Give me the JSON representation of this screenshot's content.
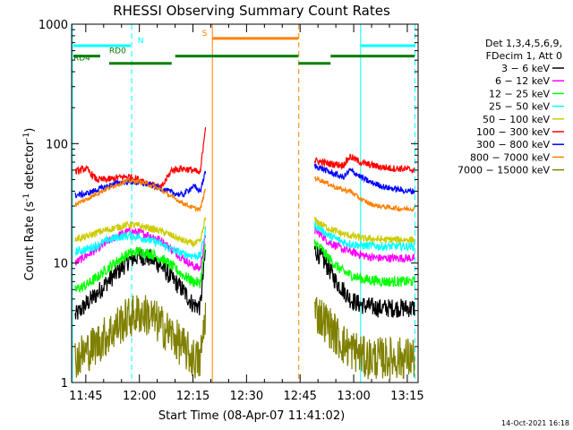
{
  "chart_data": {
    "type": "line",
    "title": "RHESSI Observing Summary Count Rates",
    "xlabel": "Start Time (08-Apr-07 11:41:02)",
    "ylabel": "Count Rate (s^-1 detector^-1)",
    "ylabel_main": "Count Rate (s",
    "ylabel_sup1": "-1",
    "ylabel_mid": " detector",
    "ylabel_sup2": "-1",
    "ylabel_end": ")",
    "x_unit": "minutes after 11:41:02",
    "xlim": [
      0,
      97
    ],
    "ylim": [
      1,
      1000
    ],
    "yscale": "log",
    "x_ticks": [
      {
        "value": 3.97,
        "label": "11:45"
      },
      {
        "value": 18.97,
        "label": "12:00"
      },
      {
        "value": 33.97,
        "label": "12:15"
      },
      {
        "value": 48.97,
        "label": "12:30"
      },
      {
        "value": 63.97,
        "label": "12:45"
      },
      {
        "value": 78.97,
        "label": "13:00"
      },
      {
        "value": 93.97,
        "label": "13:15"
      }
    ],
    "y_ticks": [
      {
        "value": 1,
        "label": "1"
      },
      {
        "value": 10,
        "label": "10"
      },
      {
        "value": 100,
        "label": "100"
      },
      {
        "value": 1000,
        "label": "1000"
      }
    ],
    "legend_header": [
      "Det 1,3,4,5,6,9,",
      "FDecim 1, Att 0"
    ],
    "data_gap": [
      38.2,
      67.0
    ],
    "series": [
      {
        "name": "3 - 6 keV",
        "label": "3 − 6 keV",
        "color": "#000000",
        "x": [
          1,
          4,
          7,
          10,
          13,
          16,
          19,
          22,
          25,
          28,
          31,
          34,
          36,
          37.5,
          68,
          70,
          72,
          74,
          76,
          78,
          80,
          82,
          84,
          86,
          88,
          90,
          92,
          94,
          96
        ],
        "values": [
          3.6,
          4.5,
          5.5,
          7,
          8.5,
          10.5,
          11.5,
          11,
          9.5,
          7.5,
          6,
          4.5,
          4.3,
          13,
          13,
          11,
          9,
          7,
          6,
          5,
          4.6,
          4.4,
          4.3,
          4.2,
          4.2,
          4.2,
          4.2,
          4.2,
          4.2
        ],
        "noise": 0.08
      },
      {
        "name": "6 - 12 keV",
        "label": "6 − 12 keV",
        "color": "#ff00ff",
        "x": [
          1,
          4,
          7,
          10,
          13,
          16,
          19,
          22,
          25,
          28,
          31,
          34,
          36,
          37.5,
          68,
          70,
          72,
          74,
          76,
          78,
          80,
          82,
          84,
          86,
          88,
          90,
          92,
          94,
          96
        ],
        "values": [
          10,
          11.5,
          13,
          15,
          17,
          18.5,
          18,
          17,
          15.5,
          13,
          11,
          9.5,
          9,
          17,
          19,
          17,
          15,
          14,
          13,
          12.5,
          12,
          11.5,
          11.2,
          11,
          11,
          11,
          11,
          11,
          11
        ],
        "noise": 0.035
      },
      {
        "name": "12 - 25 keV",
        "label": "12 − 25 keV",
        "color": "#00ff00",
        "x": [
          1,
          4,
          7,
          10,
          13,
          16,
          19,
          22,
          25,
          28,
          31,
          34,
          36,
          37.5,
          68,
          70,
          72,
          74,
          76,
          78,
          80,
          82,
          84,
          86,
          88,
          90,
          92,
          94,
          96
        ],
        "values": [
          6,
          6.5,
          7.5,
          9,
          10.5,
          12,
          12.5,
          12,
          11,
          9.5,
          8,
          7,
          6.8,
          14,
          15,
          13,
          11,
          9.5,
          8.5,
          8,
          7.6,
          7.3,
          7.2,
          7.1,
          7,
          7,
          7,
          7,
          7
        ],
        "noise": 0.045
      },
      {
        "name": "25 - 50 keV",
        "label": "25 − 50 keV",
        "color": "#00ffff",
        "x": [
          1,
          4,
          7,
          10,
          13,
          16,
          19,
          22,
          25,
          28,
          31,
          34,
          36,
          37.5,
          68,
          70,
          72,
          74,
          76,
          78,
          80,
          82,
          84,
          86,
          88,
          90,
          92,
          94,
          96
        ],
        "values": [
          12.5,
          13,
          14,
          15.5,
          16.5,
          17,
          16.5,
          15.5,
          14.5,
          13,
          12,
          11.5,
          11.5,
          19,
          21,
          19,
          17,
          16,
          15,
          14.5,
          14.2,
          14,
          14,
          13.8,
          13.8,
          13.8,
          13.8,
          13.8,
          13.8
        ],
        "noise": 0.035
      },
      {
        "name": "50 - 100 keV",
        "label": "50 − 100 keV",
        "color": "#cccc00",
        "x": [
          1,
          4,
          7,
          10,
          13,
          16,
          19,
          22,
          25,
          28,
          31,
          34,
          36,
          37.5,
          68,
          70,
          72,
          74,
          76,
          78,
          80,
          82,
          84,
          86,
          88,
          90,
          92,
          94,
          96
        ],
        "values": [
          16,
          16.5,
          18,
          19,
          20,
          21,
          20.5,
          19.5,
          18.5,
          17,
          15.5,
          14.5,
          15,
          24,
          23,
          21,
          19.5,
          18.5,
          17.5,
          17,
          16.5,
          16,
          16,
          15.8,
          15.7,
          15.7,
          15.7,
          15.7,
          15.7
        ],
        "noise": 0.03
      },
      {
        "name": "100 - 300 keV",
        "label": "100 − 300 keV",
        "color": "#ff0000",
        "x": [
          1,
          4,
          7,
          10,
          13,
          16,
          19,
          22,
          25,
          28,
          31,
          34,
          36,
          37.5,
          68,
          70,
          72,
          74,
          76,
          78,
          80,
          82,
          84,
          86,
          88,
          90,
          92,
          94,
          96
        ],
        "values": [
          58,
          62,
          50,
          50,
          52,
          53,
          50,
          46,
          42,
          60,
          62,
          60,
          56,
          145,
          72,
          70,
          68,
          67,
          66,
          78,
          72,
          68,
          66,
          64,
          63,
          62,
          62,
          61,
          60
        ],
        "noise": 0.03
      },
      {
        "name": "300 - 800 keV",
        "label": "300 − 800 keV",
        "color": "#0000ff",
        "x": [
          1,
          4,
          7,
          10,
          13,
          16,
          19,
          22,
          25,
          28,
          31,
          34,
          36,
          37.5,
          68,
          70,
          72,
          74,
          76,
          78,
          80,
          82,
          84,
          86,
          88,
          90,
          92,
          94,
          96
        ],
        "values": [
          37,
          38,
          41,
          44,
          47,
          48,
          47,
          45,
          42,
          39,
          37,
          44,
          40,
          58,
          65,
          62,
          58,
          55,
          52,
          60,
          55,
          50,
          47,
          45,
          43,
          42,
          41,
          40,
          40
        ],
        "noise": 0.025
      },
      {
        "name": "800 - 7000 keV",
        "label": "800 − 7000 keV",
        "color": "#ff8000",
        "x": [
          1,
          4,
          7,
          10,
          13,
          16,
          19,
          22,
          25,
          28,
          31,
          34,
          36,
          37.5,
          68,
          70,
          72,
          74,
          76,
          78,
          80,
          82,
          84,
          86,
          88,
          90,
          92,
          94,
          96
        ],
        "values": [
          31,
          34,
          38,
          42,
          46,
          49,
          48,
          45,
          41,
          36,
          32,
          29,
          28,
          42,
          52,
          49,
          46,
          43,
          41,
          40,
          36,
          33,
          31,
          30,
          29.5,
          29,
          28.5,
          28.5,
          28.5
        ],
        "noise": 0.02
      },
      {
        "name": "7000 - 15000 keV",
        "label": "7000 − 15000 keV",
        "color": "#808000",
        "x": [
          1,
          4,
          7,
          10,
          13,
          16,
          19,
          22,
          25,
          28,
          31,
          34,
          36,
          37.5,
          68,
          70,
          72,
          74,
          76,
          78,
          80,
          82,
          84,
          86,
          88,
          90,
          92,
          94,
          96
        ],
        "values": [
          1.6,
          1.8,
          2.1,
          2.5,
          3,
          3.5,
          3.8,
          3.6,
          3,
          2.5,
          2,
          1.6,
          1.5,
          4,
          4,
          3.5,
          3,
          2.5,
          2.1,
          1.9,
          1.8,
          1.6,
          1.6,
          1.6,
          1.6,
          1.6,
          1.6,
          1.6,
          1.6
        ],
        "noise": 0.18
      }
    ],
    "state_bars": [
      {
        "name": "N",
        "color": "#00ffff",
        "y": 660,
        "segments": [
          [
            0.5,
            16.5
          ],
          [
            81,
            96
          ]
        ],
        "label_x": 18.5
      },
      {
        "name": "S",
        "color": "#ff8000",
        "y": 760,
        "segments": [
          [
            39.5,
            63.5
          ]
        ],
        "label_x": 36.5
      },
      {
        "name": "RD0",
        "color": "#008000",
        "y": 540,
        "segments": [
          [
            0.5,
            8
          ],
          [
            29,
            63.5
          ],
          [
            72.5,
            96
          ]
        ],
        "label_x": 10.5
      },
      {
        "name": "RD4",
        "color": "#008000",
        "y": 470,
        "segments": [
          [
            10.5,
            28
          ],
          [
            63.5,
            72.5
          ]
        ],
        "label_x": 0.5
      }
    ],
    "vlines": [
      {
        "x": 0.2,
        "color": "#00ffff",
        "style": "solid",
        "ylo": 1,
        "yhi": 1000
      },
      {
        "x": 16.8,
        "color": "#00ffff",
        "style": "dashed",
        "ylo": 1,
        "yhi": 1000
      },
      {
        "x": 39.4,
        "color": "#ff8000",
        "style": "solid",
        "ylo": 1,
        "yhi": 1000
      },
      {
        "x": 63.6,
        "color": "#ff8000",
        "style": "dashed",
        "ylo": 1,
        "yhi": 1000
      },
      {
        "x": 80.9,
        "color": "#00ffff",
        "style": "solid",
        "ylo": 1,
        "yhi": 1000
      },
      {
        "x": 96.1,
        "color": "#00ffff",
        "style": "dashed",
        "ylo": 1,
        "yhi": 1000
      }
    ],
    "timestamp": "14-Oct-2021 16:18"
  }
}
